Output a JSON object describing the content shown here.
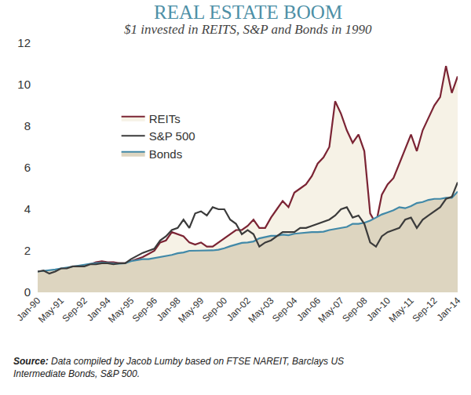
{
  "chart_data": {
    "type": "line",
    "title": "REAL ESTATE BOOM",
    "subtitle": "$1 invested in REITS, S&P and Bonds in 1990",
    "source": "Source: Data compiled by Jacob Lumby based on FTSE NAREIT, Barclays US Intermediate Bonds, S&P 500.",
    "categories": [
      "Jan-90",
      null,
      null,
      null,
      "May-91",
      null,
      null,
      null,
      "Sep-92",
      null,
      null,
      null,
      "Jan-94",
      null,
      null,
      null,
      "May-95",
      null,
      null,
      null,
      "Sep-96",
      null,
      null,
      null,
      "Jan-98",
      null,
      null,
      null,
      "May-99",
      null,
      null,
      null,
      "Sep-00",
      null,
      null,
      null,
      "Jan-02",
      null,
      null,
      null,
      "May-03",
      null,
      null,
      null,
      "Sep-04",
      null,
      null,
      null,
      "Jan-06",
      null,
      null,
      null,
      "May-07",
      null,
      null,
      null,
      "Sep-08",
      null,
      null,
      null,
      "Jan-10",
      null,
      null,
      null,
      "May-11",
      null,
      null,
      null,
      "Sep-12",
      null,
      null,
      null,
      "Jan-14"
    ],
    "series": [
      {
        "name": "REITs",
        "color": "#7b2434",
        "values": [
          1.0,
          0.95,
          0.8,
          0.95,
          1.05,
          1.05,
          1.15,
          1.15,
          1.2,
          1.35,
          1.45,
          1.5,
          1.45,
          1.45,
          1.4,
          1.4,
          1.5,
          1.6,
          1.7,
          1.85,
          2.0,
          2.4,
          2.5,
          2.9,
          2.8,
          2.7,
          2.4,
          2.3,
          2.4,
          2.2,
          2.2,
          2.4,
          2.6,
          2.8,
          3.0,
          3.0,
          3.2,
          3.5,
          3.1,
          3.1,
          3.6,
          4.0,
          4.4,
          4.1,
          4.8,
          5.0,
          5.2,
          5.6,
          6.2,
          6.5,
          7.0,
          9.2,
          8.6,
          7.8,
          7.2,
          7.6,
          6.8,
          3.8,
          3.3,
          4.7,
          5.2,
          5.5,
          6.2,
          6.9,
          7.6,
          6.8,
          7.8,
          8.4,
          9.0,
          9.4,
          10.9,
          9.6,
          10.4
        ]
      },
      {
        "name": "S&P 500",
        "color": "#3b3b3b",
        "values": [
          1.0,
          1.05,
          0.9,
          1.0,
          1.15,
          1.15,
          1.25,
          1.25,
          1.25,
          1.35,
          1.35,
          1.4,
          1.4,
          1.35,
          1.4,
          1.4,
          1.6,
          1.75,
          1.9,
          2.0,
          2.1,
          2.5,
          2.7,
          3.0,
          3.1,
          3.5,
          3.1,
          3.8,
          3.9,
          3.7,
          4.1,
          4.0,
          4.0,
          3.5,
          3.3,
          2.8,
          3.0,
          2.8,
          2.2,
          2.4,
          2.5,
          2.7,
          2.9,
          2.9,
          2.9,
          3.1,
          3.1,
          3.2,
          3.3,
          3.4,
          3.5,
          3.7,
          4.0,
          4.1,
          3.6,
          3.7,
          3.3,
          2.4,
          2.2,
          2.7,
          2.9,
          3.0,
          3.1,
          3.5,
          3.6,
          3.1,
          3.5,
          3.7,
          3.9,
          4.1,
          4.5,
          4.6,
          5.3
        ]
      },
      {
        "name": "Bonds",
        "color": "#4189a8",
        "values": [
          1.0,
          1.03,
          1.06,
          1.1,
          1.15,
          1.2,
          1.25,
          1.28,
          1.33,
          1.37,
          1.4,
          1.43,
          1.42,
          1.38,
          1.38,
          1.4,
          1.5,
          1.55,
          1.6,
          1.6,
          1.65,
          1.7,
          1.75,
          1.8,
          1.88,
          1.92,
          2.0,
          2.0,
          2.0,
          2.02,
          2.02,
          2.05,
          2.12,
          2.22,
          2.3,
          2.38,
          2.4,
          2.45,
          2.6,
          2.65,
          2.72,
          2.72,
          2.78,
          2.75,
          2.82,
          2.85,
          2.88,
          2.9,
          2.9,
          2.92,
          3.0,
          3.05,
          3.08,
          3.15,
          3.3,
          3.3,
          3.35,
          3.45,
          3.6,
          3.75,
          3.85,
          3.95,
          4.1,
          4.05,
          4.15,
          4.3,
          4.35,
          4.45,
          4.5,
          4.5,
          4.55,
          4.55,
          4.85
        ]
      }
    ],
    "ylim": [
      0,
      12
    ],
    "yticks": [
      0,
      2,
      4,
      6,
      8,
      10,
      12
    ],
    "grid": false,
    "legend": "upper left"
  }
}
